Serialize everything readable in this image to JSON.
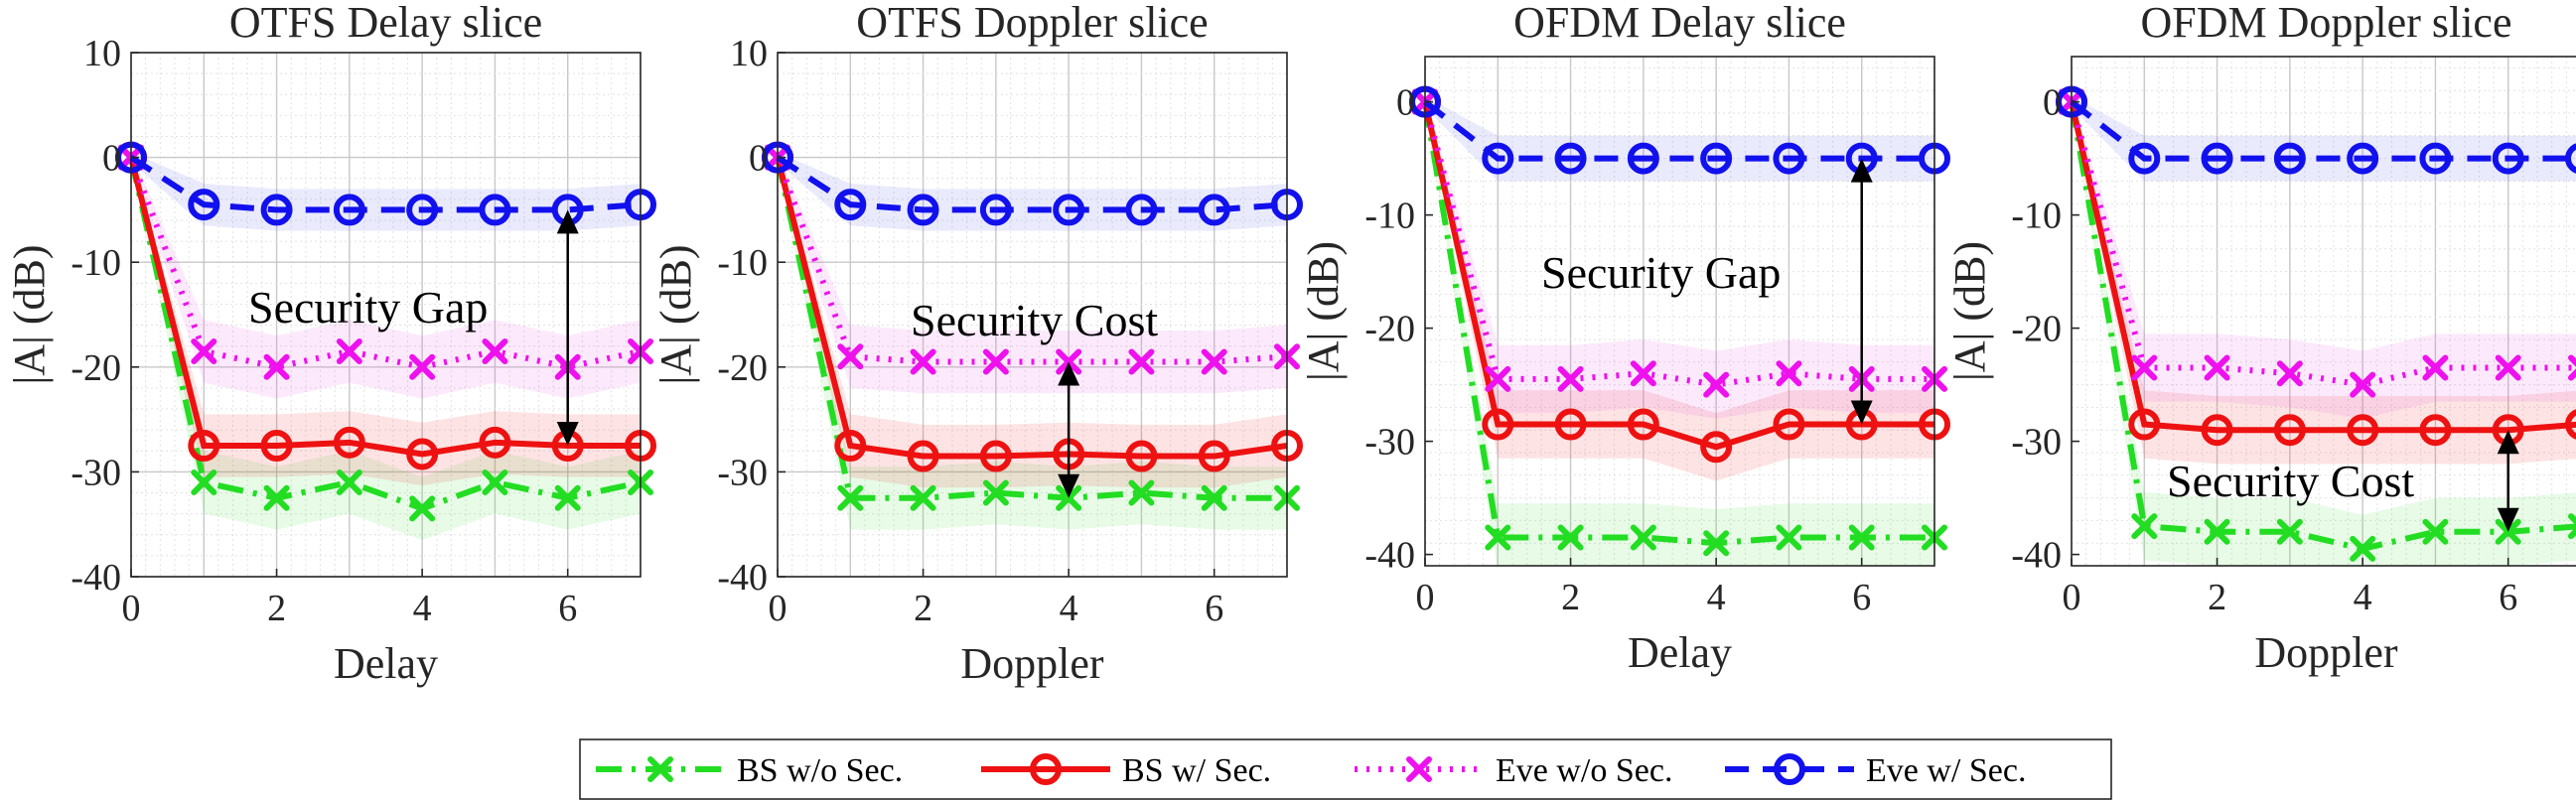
{
  "chart_data": [
    {
      "type": "line",
      "title": "OTFS Delay slice",
      "xlabel": "Delay",
      "ylabel": "|A| (dB)",
      "x": [
        0,
        1,
        2,
        3,
        4,
        5,
        6,
        7
      ],
      "xlim": [
        0,
        7
      ],
      "ylim": [
        -40,
        10
      ],
      "xticks": [
        0,
        2,
        4,
        6
      ],
      "yticks": [
        10,
        0,
        -10,
        -20,
        -30,
        -40
      ],
      "series": [
        {
          "name": "BS  w/o Sec.",
          "values": [
            0,
            -31,
            -32.5,
            -31,
            -33.5,
            -31,
            -32.5,
            -31
          ]
        },
        {
          "name": "BS  w/  Sec.",
          "values": [
            0,
            -27.5,
            -27.5,
            -27.2,
            -28.3,
            -27.2,
            -27.5,
            -27.5
          ]
        },
        {
          "name": "Eve w/o Sec.",
          "values": [
            0,
            -18.5,
            -20,
            -18.5,
            -20,
            -18.5,
            -20,
            -18.5
          ]
        },
        {
          "name": "Eve w/  Sec.",
          "values": [
            0,
            -4.5,
            -5,
            -5,
            -5,
            -5,
            -5,
            -4.5
          ]
        }
      ],
      "annotation": {
        "text": "Security Gap",
        "x": 6,
        "from": -5,
        "to": -27.5
      }
    },
    {
      "type": "line",
      "title": "OTFS Doppler slice",
      "xlabel": "Doppler",
      "ylabel": "|A| (dB)",
      "x": [
        0,
        1,
        2,
        3,
        4,
        5,
        6,
        7
      ],
      "xlim": [
        0,
        7
      ],
      "ylim": [
        -40,
        10
      ],
      "xticks": [
        0,
        2,
        4,
        6
      ],
      "yticks": [
        10,
        0,
        -10,
        -20,
        -30,
        -40
      ],
      "series": [
        {
          "name": "BS  w/o Sec.",
          "values": [
            0,
            -32.5,
            -32.5,
            -32,
            -32.5,
            -32,
            -32.5,
            -32.5
          ]
        },
        {
          "name": "BS  w/  Sec.",
          "values": [
            0,
            -27.5,
            -28.5,
            -28.5,
            -28.3,
            -28.5,
            -28.5,
            -27.5
          ]
        },
        {
          "name": "Eve w/o Sec.",
          "values": [
            0,
            -19,
            -19.5,
            -19.5,
            -19.5,
            -19.5,
            -19.5,
            -19
          ]
        },
        {
          "name": "Eve w/  Sec.",
          "values": [
            0,
            -4.5,
            -5,
            -5,
            -5,
            -5,
            -5,
            -4.5
          ]
        }
      ],
      "annotation": {
        "text": "Security Cost",
        "x": 4,
        "from": -19.5,
        "to": -32.5
      }
    },
    {
      "type": "line",
      "title": "OFDM Delay slice",
      "xlabel": "Delay",
      "ylabel": "|A| (dB)",
      "x": [
        0,
        1,
        2,
        3,
        4,
        5,
        6,
        7
      ],
      "xlim": [
        0,
        7
      ],
      "ylim": [
        -41,
        4
      ],
      "xticks": [
        0,
        2,
        4,
        6
      ],
      "yticks": [
        0,
        -10,
        -20,
        -30,
        -40
      ],
      "series": [
        {
          "name": "BS  w/o Sec.",
          "values": [
            0,
            -38.5,
            -38.5,
            -38.5,
            -39,
            -38.5,
            -38.5,
            -38.5
          ]
        },
        {
          "name": "BS  w/  Sec.",
          "values": [
            0,
            -28.5,
            -28.5,
            -28.5,
            -30.5,
            -28.5,
            -28.5,
            -28.5
          ]
        },
        {
          "name": "Eve w/o Sec.",
          "values": [
            0,
            -24.5,
            -24.5,
            -24,
            -25,
            -24,
            -24.5,
            -24.5
          ]
        },
        {
          "name": "Eve w/  Sec.",
          "values": [
            0,
            -5,
            -5,
            -5,
            -5,
            -5,
            -5,
            -5
          ]
        }
      ],
      "annotation": {
        "text": "Security Gap",
        "x": 6,
        "from": -5,
        "to": -28.5
      }
    },
    {
      "type": "line",
      "title": "OFDM Doppler slice",
      "xlabel": "Doppler",
      "ylabel": "|A| (dB)",
      "x": [
        0,
        1,
        2,
        3,
        4,
        5,
        6,
        7
      ],
      "xlim": [
        0,
        7
      ],
      "ylim": [
        -41,
        4
      ],
      "xticks": [
        0,
        2,
        4,
        6
      ],
      "yticks": [
        0,
        -10,
        -20,
        -30,
        -40
      ],
      "series": [
        {
          "name": "BS  w/o Sec.",
          "values": [
            0,
            -37.5,
            -38,
            -38,
            -39.5,
            -38,
            -38,
            -37.5
          ]
        },
        {
          "name": "BS  w/  Sec.",
          "values": [
            0,
            -28.5,
            -29,
            -29,
            -29,
            -29,
            -29,
            -28.5
          ]
        },
        {
          "name": "Eve w/o Sec.",
          "values": [
            0,
            -23.5,
            -23.5,
            -24,
            -25,
            -23.5,
            -23.5,
            -23.5
          ]
        },
        {
          "name": "Eve w/  Sec.",
          "values": [
            0,
            -5,
            -5,
            -5,
            -5,
            -5,
            -5,
            -5
          ]
        }
      ],
      "annotation": {
        "text": "Security Cost",
        "x": 6,
        "from": -29,
        "to": -38
      }
    }
  ],
  "legend": {
    "position": "bottom-center",
    "items": [
      {
        "label": "BS  w/o Sec.",
        "color": "#22dd22",
        "dash": "dash-dot",
        "marker": "x"
      },
      {
        "label": "BS  w/  Sec.",
        "color": "#ee1111",
        "dash": "solid",
        "marker": "circle"
      },
      {
        "label": "Eve w/o Sec.",
        "color": "#ee11ee",
        "dash": "dotted",
        "marker": "x"
      },
      {
        "label": "Eve w/  Sec.",
        "color": "#1111ee",
        "dash": "dashed",
        "marker": "circle"
      }
    ]
  }
}
